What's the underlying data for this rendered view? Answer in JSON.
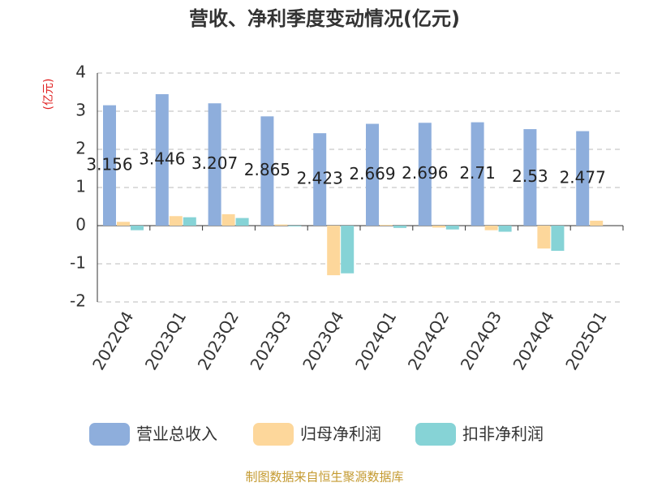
{
  "chart_data": {
    "type": "bar",
    "title": "营收、净利季度变动情况(亿元)",
    "y_label": "(亿元)",
    "categories": [
      "2022Q4",
      "2023Q1",
      "2023Q2",
      "2023Q3",
      "2023Q4",
      "2024Q1",
      "2024Q2",
      "2024Q3",
      "2024Q4",
      "2025Q1"
    ],
    "series": [
      {
        "name": "营业总收入",
        "color": "#8eaedc",
        "values": [
          3.156,
          3.446,
          3.207,
          2.865,
          2.423,
          2.669,
          2.696,
          2.71,
          2.53,
          2.477
        ]
      },
      {
        "name": "归母净利润",
        "color": "#fdd79b",
        "values": [
          0.1,
          0.25,
          0.3,
          0.03,
          -1.3,
          0.02,
          -0.05,
          -0.12,
          -0.6,
          0.13
        ]
      },
      {
        "name": "扣非净利润",
        "color": "#86d3d6",
        "values": [
          -0.12,
          0.22,
          0.2,
          -0.02,
          -1.25,
          -0.06,
          -0.1,
          -0.16,
          -0.66,
          0
        ]
      }
    ],
    "ylim": [
      -2,
      4
    ],
    "yticks": [
      -2,
      -1,
      0,
      1,
      2,
      3,
      4
    ],
    "grid": true,
    "source": "制图数据来自恒生聚源数据库"
  }
}
